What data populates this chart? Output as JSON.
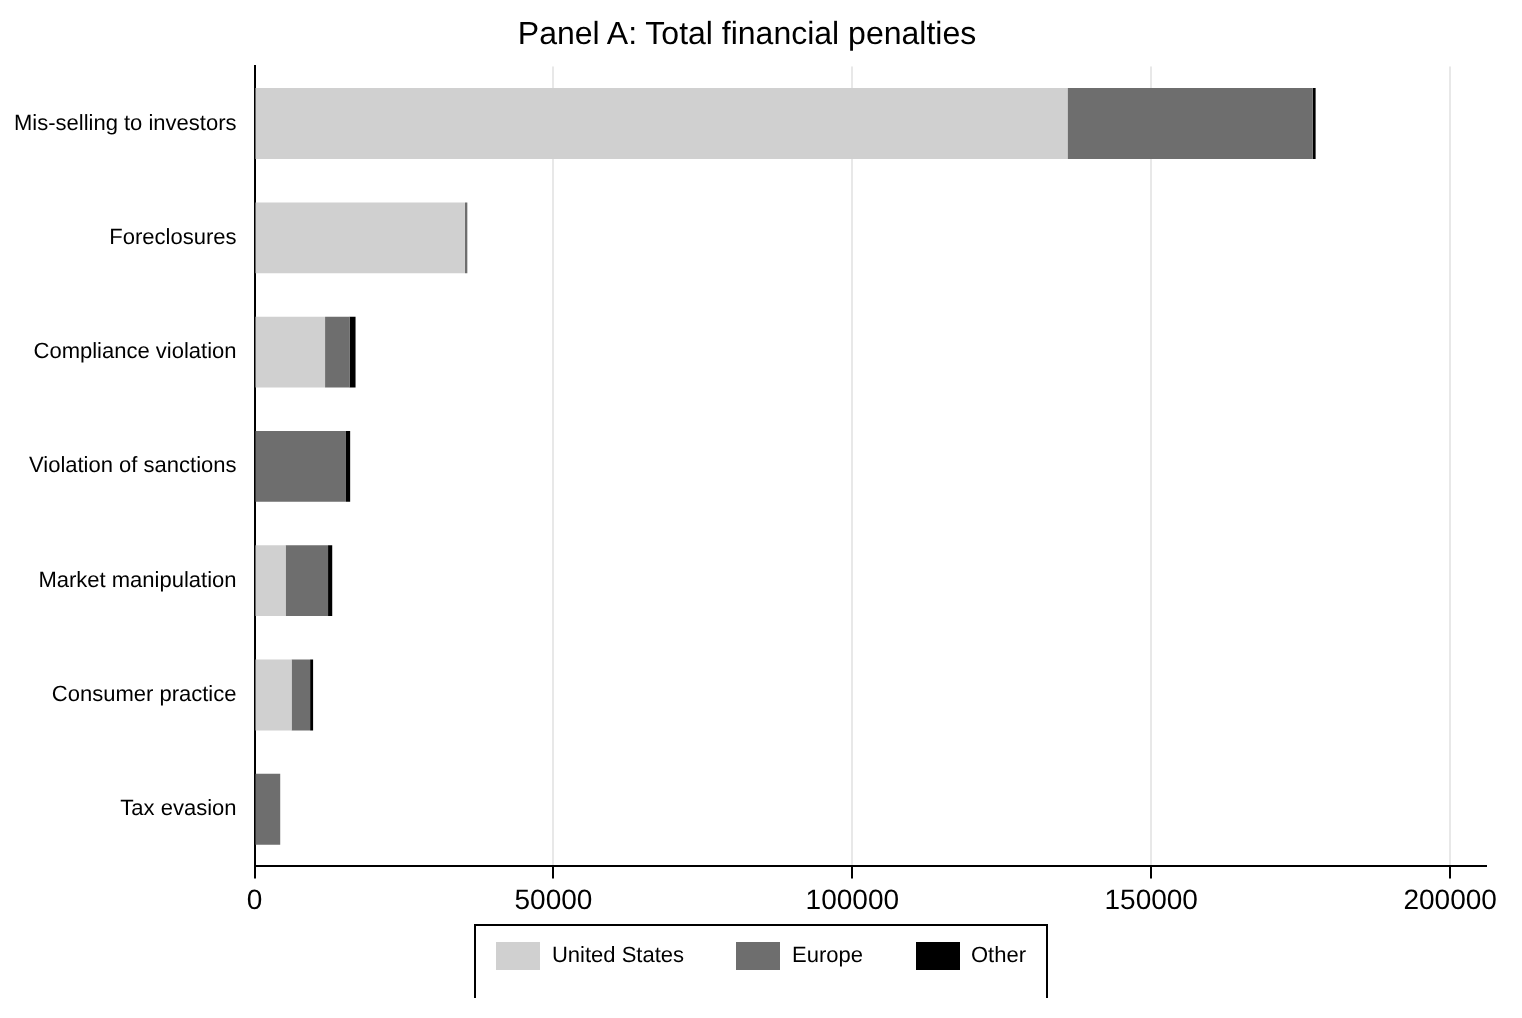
{
  "chart_data": {
    "type": "bar",
    "orientation": "horizontal",
    "stacked": true,
    "title": "Panel A: Total financial penalties",
    "categories": [
      "Mis-selling to investors",
      "Foreclosures",
      "Compliance violation",
      "Violation of sanctions",
      "Market manipulation",
      "Consumer practice",
      "Tax evasion"
    ],
    "series": [
      {
        "name": "United States",
        "color": "#d0d0d0",
        "values": [
          136000,
          35200,
          11800,
          0,
          5200,
          6200,
          0
        ]
      },
      {
        "name": "Europe",
        "color": "#6e6e6e",
        "values": [
          41000,
          400,
          4100,
          15300,
          7100,
          3100,
          4300
        ]
      },
      {
        "name": "Other",
        "color": "#000000",
        "values": [
          500,
          0,
          1000,
          700,
          700,
          500,
          0
        ]
      }
    ],
    "xlim": [
      0,
      206000
    ],
    "xticks": [
      0,
      50000,
      100000,
      150000,
      200000
    ],
    "grid": "x",
    "legend": "bottom"
  }
}
